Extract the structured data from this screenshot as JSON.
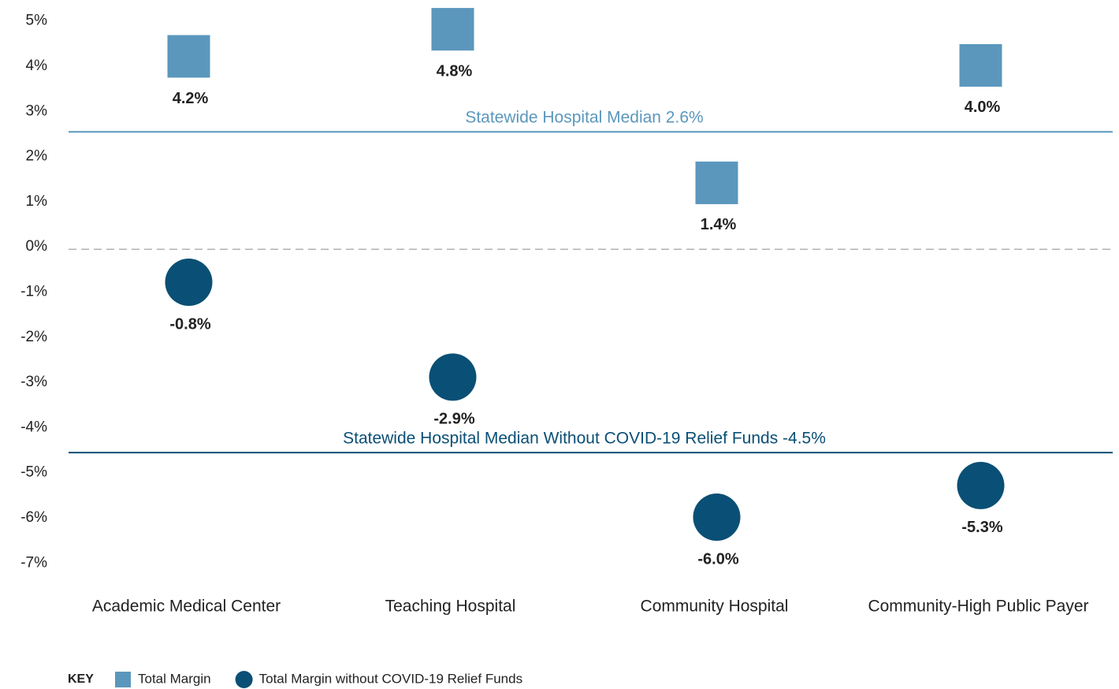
{
  "chart_data": {
    "type": "dot",
    "categories": [
      "Academic Medical Center",
      "Teaching Hospital",
      "Community Hospital",
      "Community-High Public Payer"
    ],
    "series": [
      {
        "name": "Total Margin",
        "color": "#5b97bd",
        "marker": "square",
        "values": [
          4.2,
          4.8,
          1.4,
          4.0
        ],
        "value_labels": [
          "4.2%",
          "4.8%",
          "1.4%",
          "4.0%"
        ]
      },
      {
        "name": "Total Margin without COVID-19 Relief Funds",
        "color": "#0a4f75",
        "marker": "circle",
        "values": [
          -0.8,
          -2.9,
          -6.0,
          -5.3
        ],
        "value_labels": [
          "-0.8%",
          "-2.9%",
          "-6.0%",
          "-5.3%"
        ]
      }
    ],
    "reference_lines": [
      {
        "value": 2.6,
        "label": "Statewide Hospital Median 2.6%",
        "color": "#5b97bd"
      },
      {
        "value": -4.5,
        "label": "Statewide Hospital Median Without COVID-19 Relief Funds -4.5%",
        "color": "#0a4f75"
      }
    ],
    "ylim": [
      -7.5,
      5.5
    ],
    "yticks": [
      {
        "value": 5,
        "label": "5%"
      },
      {
        "value": 4,
        "label": "4%"
      },
      {
        "value": 3,
        "label": "3%"
      },
      {
        "value": 2,
        "label": "2%"
      },
      {
        "value": 1,
        "label": "1%"
      },
      {
        "value": 0,
        "label": "0%"
      },
      {
        "value": -1,
        "label": "-1%"
      },
      {
        "value": -2,
        "label": "-2%"
      },
      {
        "value": -3,
        "label": "-3%"
      },
      {
        "value": -4,
        "label": "-4%"
      },
      {
        "value": -5,
        "label": "-5%"
      },
      {
        "value": -6,
        "label": "-6%"
      },
      {
        "value": -7,
        "label": "-7%"
      }
    ],
    "grid": false,
    "legend_title": "KEY",
    "legend_position": "bottom-left"
  }
}
